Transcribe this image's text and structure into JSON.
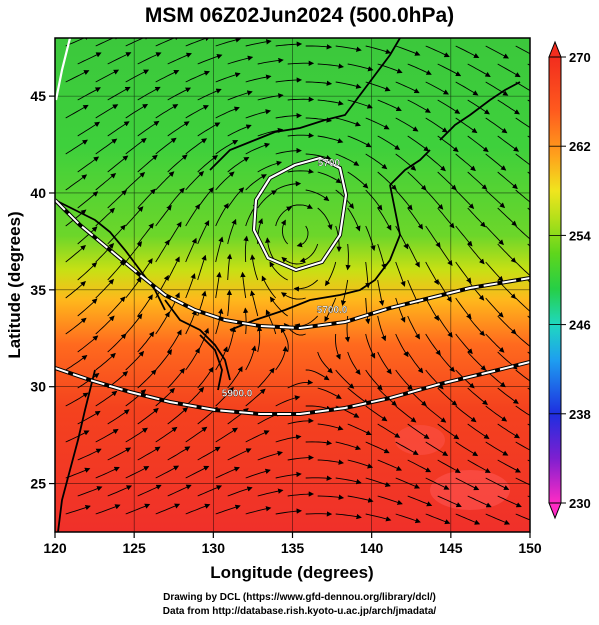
{
  "title": "MSM 06Z02Jun2024 (500.0hPa)",
  "chart_data": {
    "type": "map",
    "xlabel": "Longitude (degrees)",
    "ylabel": "Latitude (degrees)",
    "xlim": [
      120,
      150
    ],
    "ylim": [
      22.5,
      48
    ],
    "xticks": [
      120,
      125,
      130,
      135,
      140,
      145,
      150
    ],
    "yticks": [
      25,
      30,
      35,
      40,
      45
    ],
    "colorbar": {
      "min": 230,
      "max": 270,
      "ticks": [
        270,
        262,
        254,
        246,
        238,
        230
      ],
      "colors": [
        "#ff2bc4",
        "#7e1fd0",
        "#1e2ee0",
        "#1e9ef0",
        "#1fd8c0",
        "#26cf46",
        "#5fd61c",
        "#b6e01a",
        "#f0e51e",
        "#ffa11c",
        "#ff5a1e",
        "#f22d1e"
      ]
    },
    "contours": [
      {
        "label": "5700.0",
        "lon": 137.5,
        "lat": 33.8
      },
      {
        "label": "5900.0",
        "lon": 131.5,
        "lat": 29.5
      },
      {
        "label": "5700",
        "lon": 137.3,
        "lat": 41.4
      }
    ]
  },
  "credits": {
    "line1": "Drawing by DCL (https://www.gfd-dennou.org/library/dcl/)",
    "line2": "Data from http://database.rish.kyoto-u.ac.jp/arch/jmadata/"
  }
}
